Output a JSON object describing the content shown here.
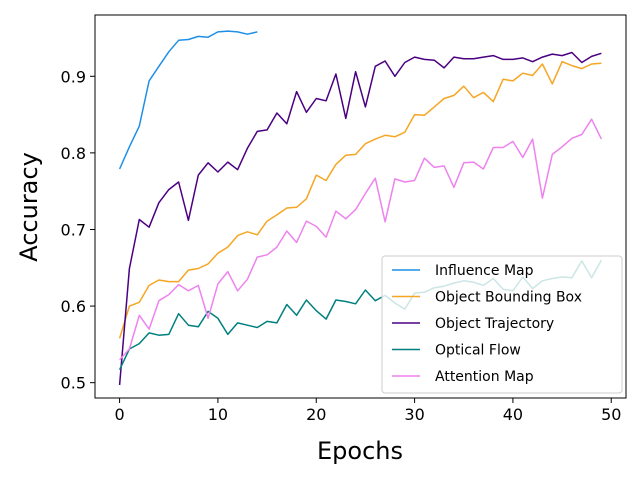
{
  "chart_data": {
    "type": "line",
    "title": "",
    "xlabel": "Epochs",
    "ylabel": "Accuracy",
    "xlim": [
      -2.5,
      51.5
    ],
    "ylim": [
      0.48,
      0.98
    ],
    "xticks": [
      0,
      10,
      20,
      30,
      40,
      50
    ],
    "yticks": [
      0.5,
      0.6,
      0.7,
      0.8,
      0.9
    ],
    "legend_position": "lower-right",
    "grid": false,
    "series": [
      {
        "name": "Influence Map",
        "color": "#1f8fe6",
        "x": [
          0,
          1,
          2,
          3,
          4,
          5,
          6,
          7,
          8,
          9,
          10,
          11,
          12,
          13,
          14
        ],
        "values": [
          0.779,
          0.808,
          0.835,
          0.894,
          0.913,
          0.932,
          0.947,
          0.948,
          0.952,
          0.951,
          0.958,
          0.959,
          0.958,
          0.955,
          0.958
        ]
      },
      {
        "name": "Object Bounding Box",
        "color": "#f5a623",
        "x": [
          0,
          1,
          2,
          3,
          4,
          5,
          6,
          7,
          8,
          9,
          10,
          11,
          12,
          13,
          14,
          15,
          16,
          17,
          18,
          19,
          20,
          21,
          22,
          23,
          24,
          25,
          26,
          27,
          28,
          29,
          30,
          31,
          32,
          33,
          34,
          35,
          36,
          37,
          38,
          39,
          40,
          41,
          42,
          43,
          44,
          45,
          46,
          47,
          48,
          49
        ],
        "values": [
          0.558,
          0.6,
          0.605,
          0.627,
          0.634,
          0.632,
          0.632,
          0.647,
          0.649,
          0.655,
          0.669,
          0.677,
          0.692,
          0.697,
          0.693,
          0.711,
          0.719,
          0.728,
          0.729,
          0.74,
          0.771,
          0.764,
          0.785,
          0.797,
          0.798,
          0.812,
          0.818,
          0.823,
          0.821,
          0.827,
          0.85,
          0.849,
          0.86,
          0.871,
          0.875,
          0.887,
          0.872,
          0.879,
          0.867,
          0.896,
          0.894,
          0.904,
          0.901,
          0.916,
          0.89,
          0.919,
          0.914,
          0.91,
          0.916,
          0.917
        ]
      },
      {
        "name": "Object Trajectory",
        "color": "#4b0082",
        "x": [
          0,
          1,
          2,
          3,
          4,
          5,
          6,
          7,
          8,
          9,
          10,
          11,
          12,
          13,
          14,
          15,
          16,
          17,
          18,
          19,
          20,
          21,
          22,
          23,
          24,
          25,
          26,
          27,
          28,
          29,
          30,
          31,
          32,
          33,
          34,
          35,
          36,
          37,
          38,
          39,
          40,
          41,
          42,
          43,
          44,
          45,
          46,
          47,
          48,
          49
        ],
        "values": [
          0.497,
          0.649,
          0.713,
          0.703,
          0.735,
          0.752,
          0.762,
          0.712,
          0.771,
          0.787,
          0.775,
          0.788,
          0.778,
          0.806,
          0.828,
          0.83,
          0.852,
          0.838,
          0.88,
          0.853,
          0.871,
          0.868,
          0.903,
          0.845,
          0.906,
          0.86,
          0.913,
          0.92,
          0.9,
          0.918,
          0.925,
          0.922,
          0.921,
          0.911,
          0.925,
          0.923,
          0.923,
          0.925,
          0.927,
          0.922,
          0.922,
          0.924,
          0.919,
          0.925,
          0.929,
          0.927,
          0.931,
          0.918,
          0.926,
          0.93
        ]
      },
      {
        "name": "Optical Flow",
        "color": "#007f7f",
        "x": [
          0,
          1,
          2,
          3,
          4,
          5,
          6,
          7,
          8,
          9,
          10,
          11,
          12,
          13,
          14,
          15,
          16,
          17,
          18,
          19,
          20,
          21,
          22,
          23,
          24,
          25,
          26,
          27,
          28,
          29,
          30,
          31,
          32,
          33,
          34,
          35,
          36,
          37,
          38,
          39,
          40,
          41,
          42,
          43,
          44,
          45,
          46,
          47,
          48,
          49
        ],
        "values": [
          0.517,
          0.544,
          0.551,
          0.565,
          0.562,
          0.563,
          0.59,
          0.575,
          0.573,
          0.593,
          0.584,
          0.563,
          0.578,
          0.575,
          0.572,
          0.58,
          0.578,
          0.602,
          0.588,
          0.608,
          0.594,
          0.583,
          0.608,
          0.606,
          0.603,
          0.621,
          0.607,
          0.614,
          0.604,
          0.596,
          0.617,
          0.618,
          0.624,
          0.626,
          0.63,
          0.633,
          0.631,
          0.627,
          0.636,
          0.622,
          0.62,
          0.638,
          0.623,
          0.633,
          0.636,
          0.638,
          0.637,
          0.659,
          0.637,
          0.66
        ]
      },
      {
        "name": "Attention Map",
        "color": "#ee82ee",
        "x": [
          0,
          1,
          2,
          3,
          4,
          5,
          6,
          7,
          8,
          9,
          10,
          11,
          12,
          13,
          14,
          15,
          16,
          17,
          18,
          19,
          20,
          21,
          22,
          23,
          24,
          25,
          26,
          27,
          28,
          29,
          30,
          31,
          32,
          33,
          34,
          35,
          36,
          37,
          38,
          39,
          40,
          41,
          42,
          43,
          44,
          45,
          46,
          47,
          48,
          49
        ],
        "values": [
          0.53,
          0.544,
          0.588,
          0.57,
          0.607,
          0.615,
          0.628,
          0.62,
          0.627,
          0.584,
          0.629,
          0.645,
          0.62,
          0.635,
          0.664,
          0.667,
          0.677,
          0.698,
          0.683,
          0.711,
          0.704,
          0.69,
          0.724,
          0.714,
          0.726,
          0.747,
          0.767,
          0.71,
          0.766,
          0.762,
          0.764,
          0.793,
          0.781,
          0.783,
          0.755,
          0.787,
          0.788,
          0.779,
          0.807,
          0.807,
          0.815,
          0.794,
          0.818,
          0.741,
          0.798,
          0.808,
          0.819,
          0.824,
          0.844,
          0.818
        ]
      }
    ]
  }
}
